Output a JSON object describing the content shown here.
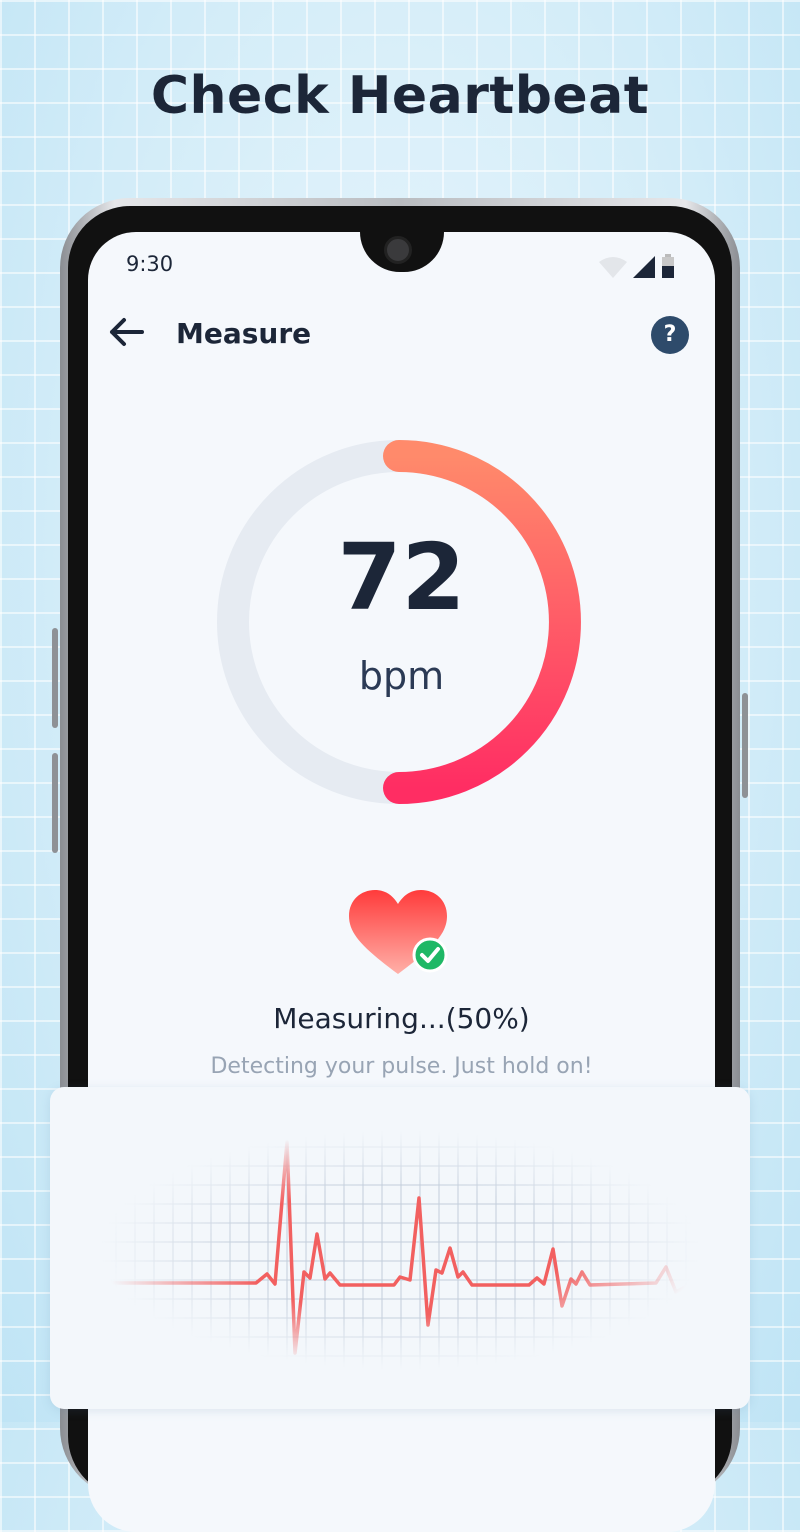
{
  "headline": "Check Heartbeat",
  "status_bar": {
    "time": "9:30",
    "icons": [
      "wifi-icon",
      "signal-icon",
      "battery-icon"
    ]
  },
  "topbar": {
    "back_icon": "arrow-left-icon",
    "title": "Measure",
    "help_label": "?"
  },
  "gauge": {
    "value": "72",
    "unit": "bpm",
    "progress": 0.5,
    "colors": {
      "track": "#e6ebf2",
      "start": "#ff8a6b",
      "end": "#ff2d63"
    }
  },
  "status": {
    "icon": "heart-check-icon",
    "title": "Measuring...(50%)",
    "subtitle": "Detecting your pulse. Just hold on!"
  },
  "ecg": {
    "line_color": "#f26060",
    "grid_color": "#b8c4d4"
  }
}
